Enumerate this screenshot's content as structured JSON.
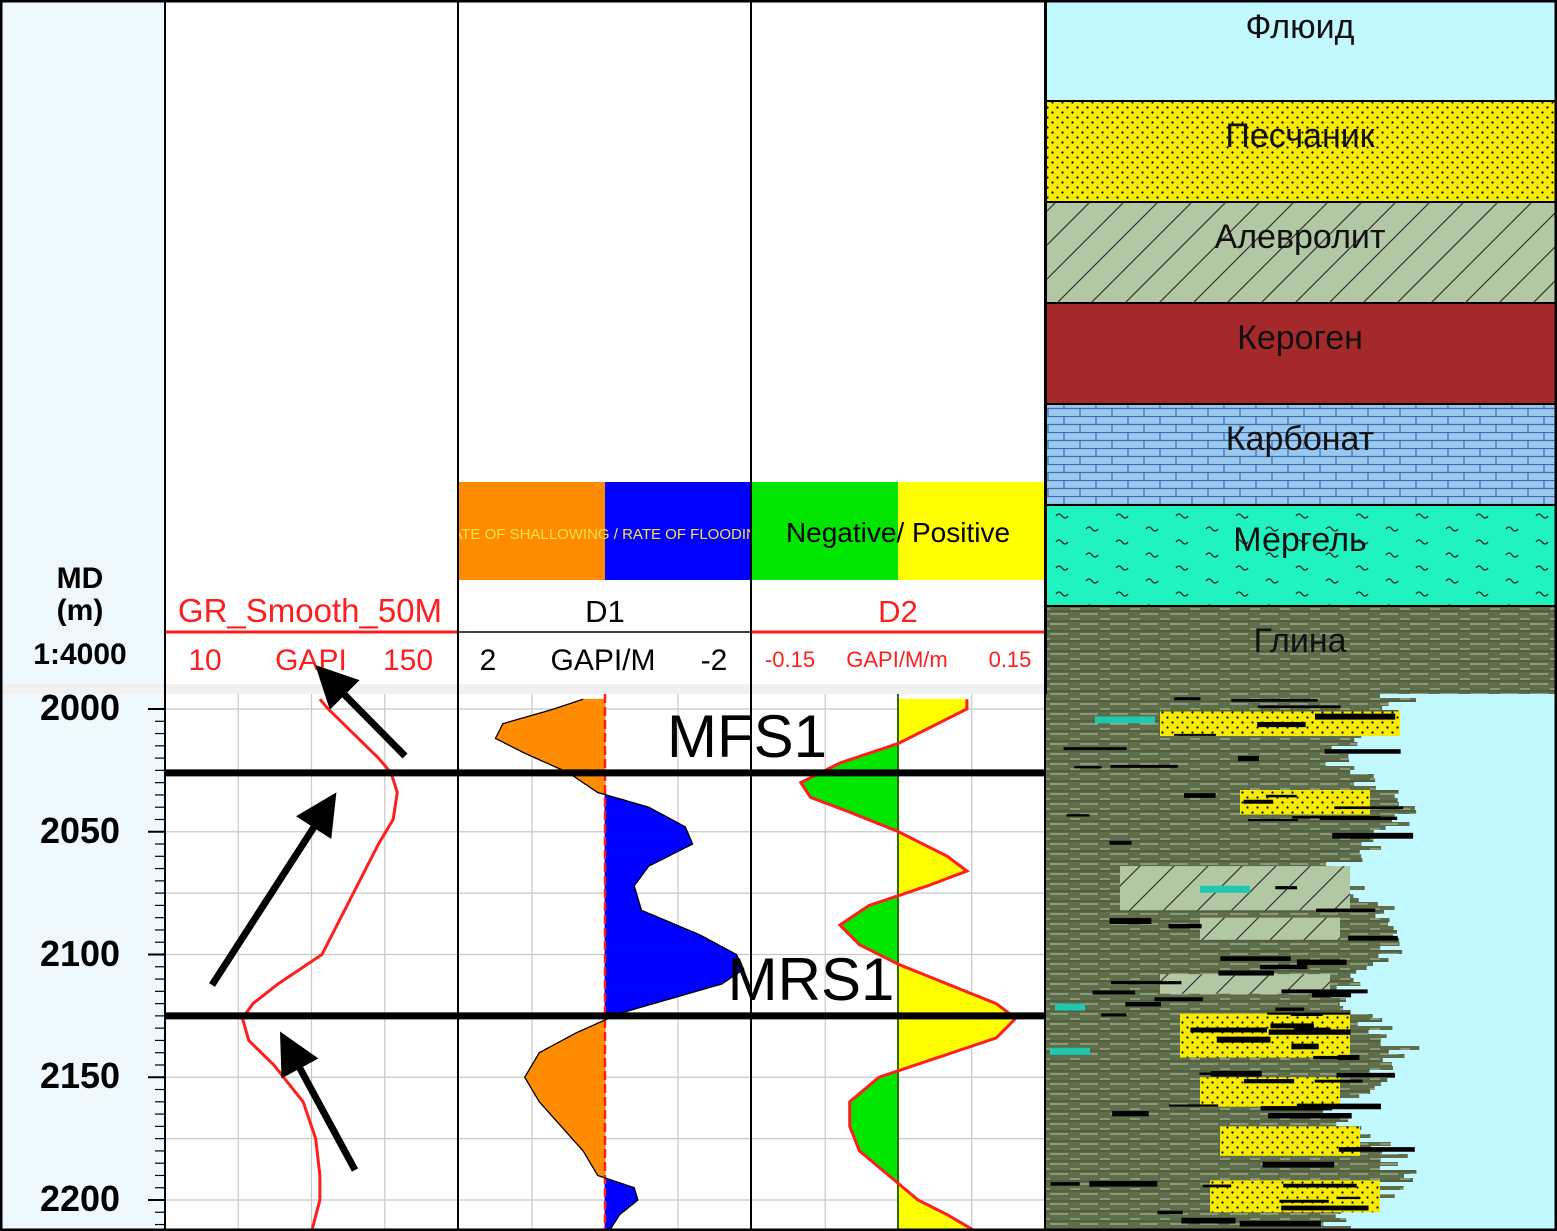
{
  "depth_track": {
    "title_line1": "MD",
    "title_line2": "(m)",
    "scale": "1:4000",
    "ticks": [
      "2000",
      "2050",
      "2100",
      "2150",
      "2200"
    ]
  },
  "gr_track": {
    "curve_name": "GR_Smooth_50M",
    "scale_left": "10",
    "unit": "GAPI",
    "scale_right": "150"
  },
  "d1_track": {
    "fill_label": "RATE OF SHALLOWING / RATE OF FLOODING",
    "curve_name": "D1",
    "scale_left": "2",
    "unit": "GAPI/M",
    "scale_right": "-2"
  },
  "d2_track": {
    "fill_label": "Negative/ Positive",
    "curve_name": "D2",
    "scale_left": "-0.15",
    "unit": "GAPI/M/m",
    "scale_right": "0.15"
  },
  "lithology_legend": [
    {
      "label": "Флюид",
      "pattern": "fluid",
      "color": "#c2f8ff"
    },
    {
      "label": "Песчаник",
      "pattern": "sand",
      "color": "#f7ec00"
    },
    {
      "label": "Алевролит",
      "pattern": "silt",
      "color": "#b2c8a4"
    },
    {
      "label": "Кероген",
      "pattern": "kerogen",
      "color": "#a5292a"
    },
    {
      "label": "Карбонат",
      "pattern": "carbonate",
      "color": "#9bc8ee"
    },
    {
      "label": "Мергель",
      "pattern": "marl",
      "color": "#20f2c0"
    },
    {
      "label": "Глина",
      "pattern": "clay",
      "color": "#5f6e4a"
    }
  ],
  "surfaces": [
    {
      "label": "MFS1",
      "depth": 2026
    },
    {
      "label": "MRS1",
      "depth": 2125
    }
  ],
  "colors": {
    "gr_curve": "#ff1e1e",
    "d1_shallowing": "#ff8c00",
    "d1_flooding": "#0000ff",
    "d2_negative": "#00e600",
    "d2_positive": "#ffff00"
  },
  "chart_data": {
    "type": "line",
    "depth_range": [
      1996,
      2213
    ],
    "depth_unit": "m",
    "series": [
      {
        "name": "GR_Smooth_50M",
        "xlim": [
          10,
          150
        ],
        "depth": [
          1996,
          2000,
          2010,
          2020,
          2026,
          2034,
          2045,
          2055,
          2070,
          2085,
          2100,
          2112,
          2120,
          2126,
          2135,
          2145,
          2160,
          2175,
          2190,
          2200,
          2213
        ],
        "values": [
          84,
          88,
          100,
          112,
          118,
          121,
          119,
          112,
          103,
          94,
          85,
          64,
          52,
          47,
          50,
          62,
          76,
          82,
          84,
          84,
          80
        ]
      },
      {
        "name": "D1",
        "xlim": [
          2,
          -2
        ],
        "depth": [
          1996,
          2000,
          2006,
          2012,
          2018,
          2026,
          2034,
          2040,
          2048,
          2055,
          2064,
          2072,
          2082,
          2092,
          2100,
          2106,
          2112,
          2118,
          2124,
          2132,
          2140,
          2150,
          2160,
          2170,
          2180,
          2190,
          2195,
          2200,
          2206,
          2213
        ],
        "values": [
          0.3,
          0.7,
          1.4,
          1.5,
          1.1,
          0.5,
          0.1,
          -0.6,
          -1.1,
          -1.2,
          -0.6,
          -0.4,
          -0.5,
          -1.3,
          -1.8,
          -1.9,
          -1.6,
          -0.9,
          -0.2,
          0.4,
          0.9,
          1.1,
          0.9,
          0.6,
          0.3,
          0.1,
          -0.4,
          -0.45,
          -0.2,
          -0.05
        ]
      },
      {
        "name": "D2",
        "xlim": [
          -0.15,
          0.15
        ],
        "depth": [
          1996,
          2000,
          2006,
          2014,
          2022,
          2030,
          2036,
          2042,
          2050,
          2060,
          2066,
          2072,
          2080,
          2088,
          2096,
          2104,
          2112,
          2120,
          2126,
          2134,
          2142,
          2150,
          2160,
          2170,
          2180,
          2190,
          2200,
          2206,
          2213
        ],
        "values": [
          0.07,
          0.07,
          0.04,
          0.0,
          -0.06,
          -0.1,
          -0.09,
          -0.05,
          0.0,
          0.05,
          0.07,
          0.03,
          -0.03,
          -0.06,
          -0.04,
          0.0,
          0.05,
          0.1,
          0.12,
          0.1,
          0.04,
          -0.02,
          -0.05,
          -0.05,
          -0.04,
          -0.01,
          0.02,
          0.05,
          0.08
        ]
      }
    ]
  }
}
